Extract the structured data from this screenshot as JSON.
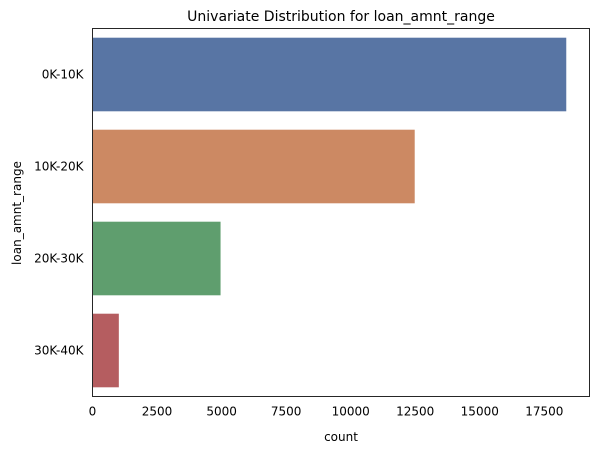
{
  "chart_data": {
    "type": "bar",
    "orientation": "horizontal",
    "title": "Univariate Distribution for loan_amnt_range",
    "xlabel": "count",
    "ylabel": "loan_amnt_range",
    "categories": [
      "0K-10K",
      "10K-20K",
      "20K-30K",
      "30K-40K"
    ],
    "values": [
      18350,
      12480,
      4960,
      1020
    ],
    "colors": [
      "#5875a4",
      "#cc8963",
      "#5f9e6e",
      "#b55d60"
    ],
    "xlim": [
      0,
      19250
    ],
    "xticks": [
      0,
      2500,
      5000,
      7500,
      10000,
      12500,
      15000,
      17500
    ],
    "grid": false,
    "legend": "none"
  }
}
